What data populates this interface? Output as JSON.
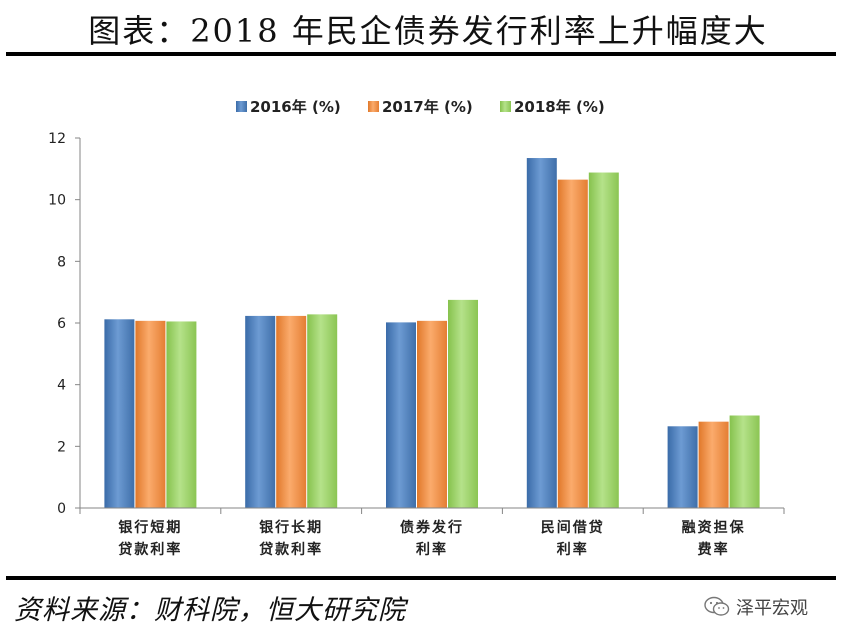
{
  "header": {
    "title": "图表：2018 年民企债券发行利率上升幅度大"
  },
  "footer": {
    "source": "资料来源：财科院，恒大研究院",
    "watermark": "泽平宏观"
  },
  "colors": {
    "s2016": "#4f81bd",
    "s2017": "#f79646",
    "s2018": "#9bd265"
  },
  "chart_data": {
    "type": "bar",
    "title": "",
    "xlabel": "",
    "ylabel": "",
    "ylim": [
      0,
      12
    ],
    "yticks": [
      0,
      2,
      4,
      6,
      8,
      10,
      12
    ],
    "grid": false,
    "legend_position": "top",
    "categories": [
      [
        "银行短期",
        "贷款利率"
      ],
      [
        "银行长期",
        "贷款利率"
      ],
      [
        "债券发行",
        "利率"
      ],
      [
        "民间借贷",
        "利率"
      ],
      [
        "融资担保",
        "费率"
      ]
    ],
    "series": [
      {
        "name": "2016年 (%)",
        "color": "#4f81bd",
        "values": [
          6.12,
          6.23,
          6.02,
          11.35,
          2.65
        ]
      },
      {
        "name": "2017年 (%)",
        "color": "#f79646",
        "values": [
          6.07,
          6.23,
          6.07,
          10.65,
          2.8
        ]
      },
      {
        "name": "2018年 (%)",
        "color": "#9bd265",
        "values": [
          6.05,
          6.28,
          6.75,
          10.88,
          3.0
        ]
      }
    ]
  }
}
